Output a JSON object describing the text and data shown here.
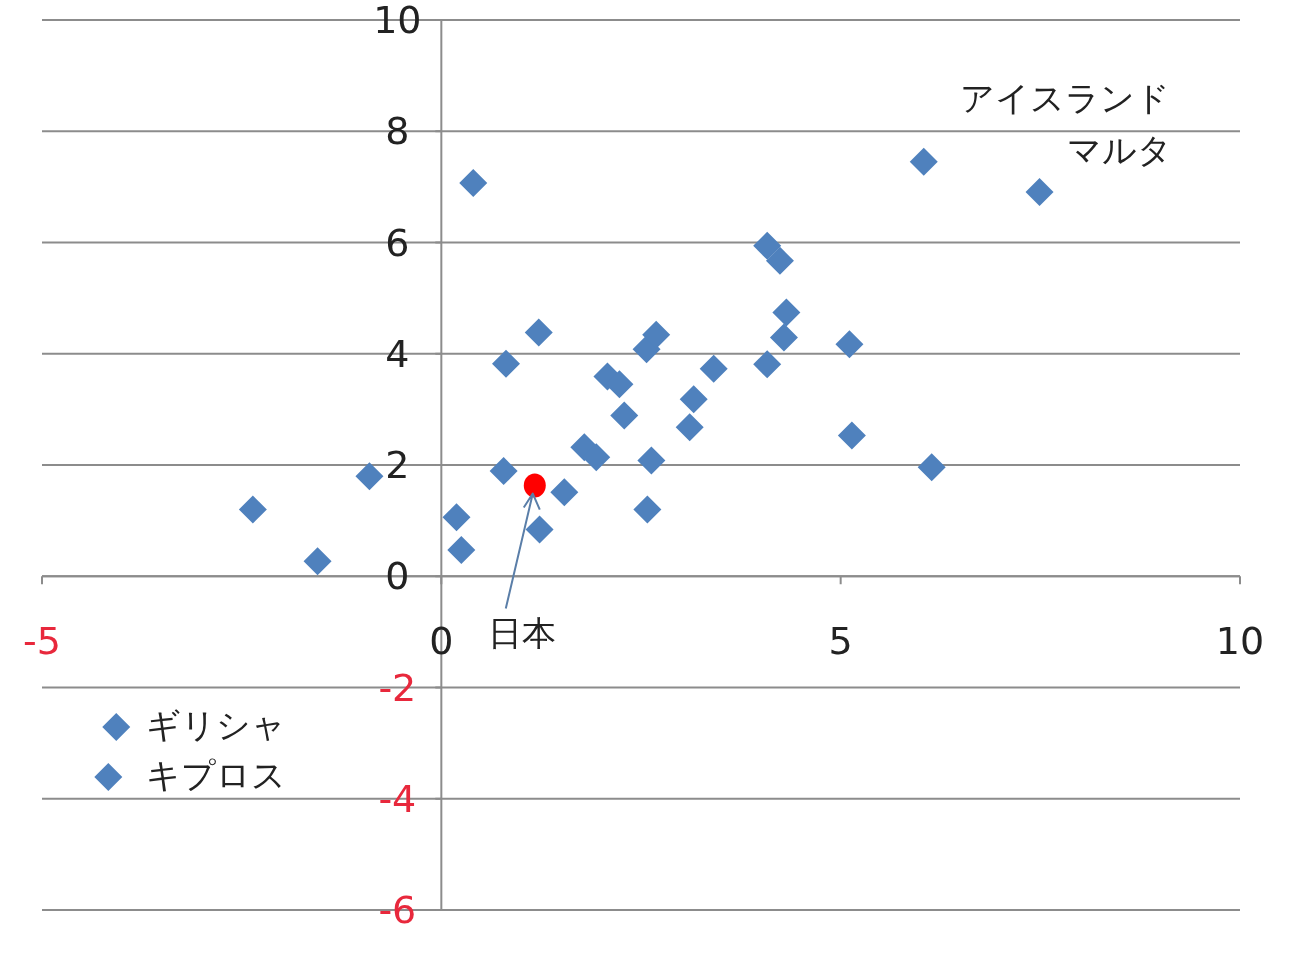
{
  "chart_data": {
    "type": "scatter",
    "xlim": [
      -5,
      10
    ],
    "ylim": [
      -6,
      10
    ],
    "xticks": [
      -5,
      0,
      5,
      10
    ],
    "yticks": [
      -6,
      -4,
      -2,
      0,
      2,
      4,
      6,
      8,
      10
    ],
    "grid": "y",
    "series": [
      {
        "color": "#4f81bd",
        "marker": "diamond",
        "x": [
          -2.36,
          -1.55,
          -0.9,
          0.4,
          0.19,
          0.25,
          0.78,
          0.81,
          1.22,
          1.23,
          1.54,
          1.79,
          1.94,
          2.08,
          2.23,
          2.29,
          2.57,
          2.69,
          2.63,
          2.58,
          3.11,
          3.16,
          3.41,
          4.08,
          4.08,
          4.24,
          4.32,
          4.29,
          5.11,
          5.14,
          6.14,
          6.04,
          7.49,
          -4.07,
          -4.17
        ],
        "values": [
          1.2,
          0.27,
          1.8,
          7.07,
          1.06,
          0.47,
          1.89,
          3.82,
          4.38,
          0.84,
          1.51,
          2.32,
          2.14,
          3.59,
          3.45,
          2.89,
          4.08,
          4.34,
          2.08,
          1.2,
          2.68,
          3.18,
          3.73,
          3.81,
          5.94,
          5.67,
          4.74,
          4.29,
          4.17,
          2.53,
          1.96,
          7.45,
          6.91,
          -2.71,
          -3.61
        ]
      },
      {
        "color": "#ff0000",
        "marker": "circle",
        "x": [
          1.17
        ],
        "values": [
          1.63
        ]
      }
    ],
    "annotations": [
      {
        "text": "アイスランド",
        "x": 6.04,
        "y": 7.45
      },
      {
        "text": "マルタ",
        "x": 7.49,
        "y": 6.91
      },
      {
        "text": "日本",
        "x": 1.17,
        "y": 1.63
      },
      {
        "text": "ギリシャ",
        "x": -4.07,
        "y": -2.71
      },
      {
        "text": "キプロス",
        "x": -4.17,
        "y": -3.61
      }
    ]
  }
}
